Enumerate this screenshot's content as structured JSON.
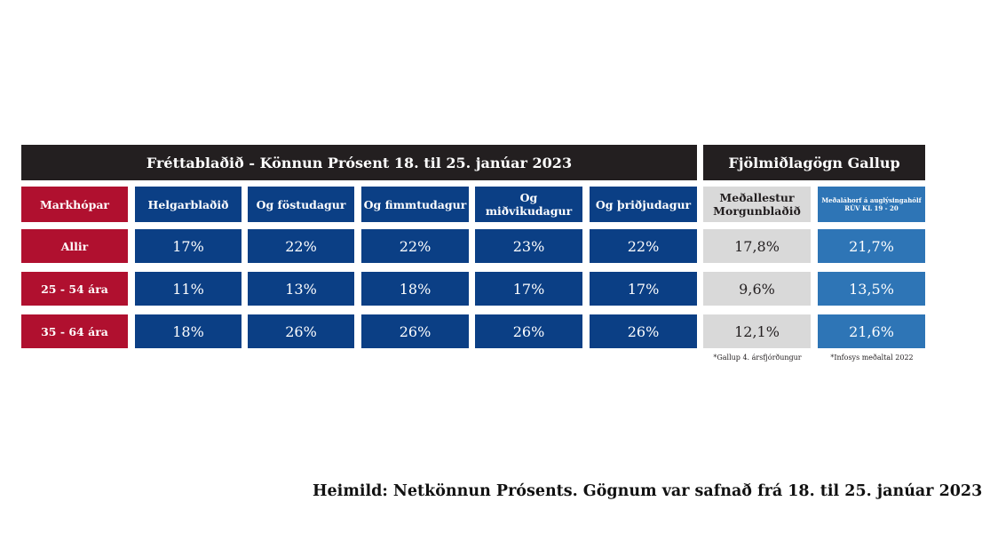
{
  "fb_header": "Fréttablaðið - Könnun Prósent 18. til 25. janúar 2023",
  "gallup_header": "Fjölmiðlagögn Gallup",
  "row_header_label": "Markhópar",
  "fb_columns": [
    "Helgarblaðið",
    "Og föstudagur",
    "Og fimmtudagur",
    "Og miðvikudagur",
    "Og þriðjudagur"
  ],
  "gallup_column": {
    "line1": "Meðallestur",
    "line2": "Morgunblaðið"
  },
  "infosys_column": {
    "line1": "Meðaláhorf á auglýsingahólf",
    "line2": "RÚV KL 19 - 20"
  },
  "chart_data": {
    "type": "table",
    "rows": [
      {
        "label": "Allir",
        "fb": [
          "17%",
          "22%",
          "22%",
          "23%",
          "22%"
        ],
        "gallup": "17,8%",
        "infosys": "21,7%"
      },
      {
        "label": "25 - 54 ára",
        "fb": [
          "11%",
          "13%",
          "18%",
          "17%",
          "17%"
        ],
        "gallup": "9,6%",
        "infosys": "13,5%"
      },
      {
        "label": "35 - 64 ára",
        "fb": [
          "18%",
          "26%",
          "26%",
          "26%",
          "26%"
        ],
        "gallup": "12,1%",
        "infosys": "21,6%"
      }
    ]
  },
  "notes": {
    "gallup": "*Gallup 4. ársfjórðungur",
    "infosys": "*Infosys meðaltal 2022"
  },
  "source": "Heimild: Netkönnun Prósents. Gögnum var safnað frá 18. til 25. janúar 2023",
  "colors": {
    "black": "#231f20",
    "red": "#b0102f",
    "navy": "#0b3f85",
    "grey": "#d9d9d9",
    "blue": "#2e75b6"
  }
}
